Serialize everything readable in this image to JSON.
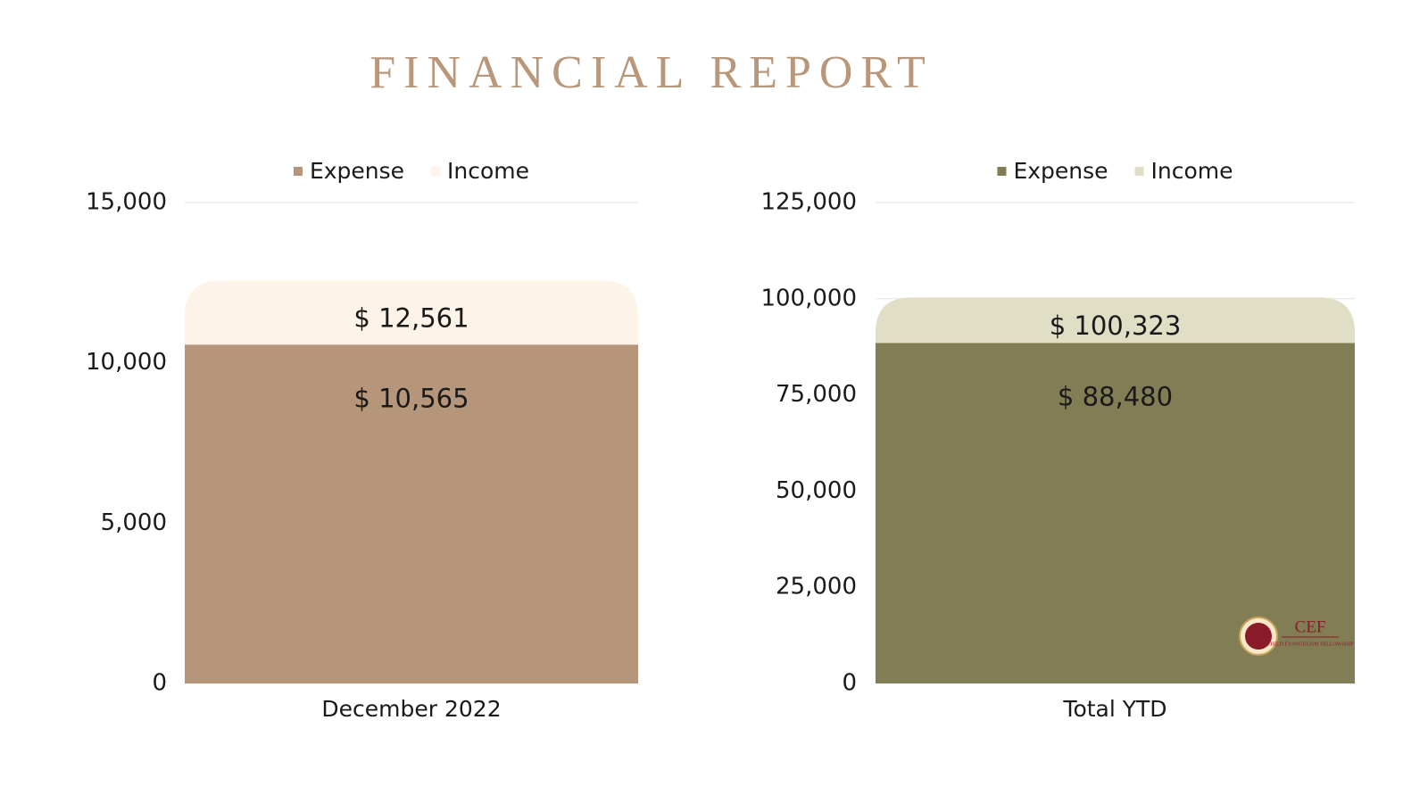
{
  "title": "FINANCIAL REPORT",
  "logo": {
    "name": "CEF",
    "subtitle": "CHILD EVANGELISM FELLOWSHIP"
  },
  "chart_data": [
    {
      "type": "bar",
      "bar_mode": "overlay",
      "categories": [
        "December 2022"
      ],
      "series": [
        {
          "name": "Expense",
          "color": "#b5967a",
          "label_color": "#ffffff",
          "values": [
            10565
          ],
          "value_labels": [
            "$ 10,565"
          ]
        },
        {
          "name": "Income",
          "color": "#fdf3e8",
          "label_color": "#1a1a1a",
          "values": [
            12561
          ],
          "value_labels": [
            "$ 12,561"
          ]
        }
      ],
      "ylim": [
        0,
        15000
      ],
      "yticks": [
        0,
        {
          "value": 5000,
          "label": "5,000"
        },
        {
          "value": 10000,
          "label": "10,000"
        },
        {
          "value": 15000,
          "label": "15,000"
        }
      ],
      "grid": true,
      "legend": "top"
    },
    {
      "type": "bar",
      "bar_mode": "overlay",
      "categories": [
        "Total YTD"
      ],
      "series": [
        {
          "name": "Expense",
          "color": "#817e55",
          "label_color": "#ffffff",
          "values": [
            88480
          ],
          "value_labels": [
            "$ 88,480"
          ]
        },
        {
          "name": "Income",
          "color": "#e1dec6",
          "label_color": "#1a1a1a",
          "values": [
            100323
          ],
          "value_labels": [
            "$ 100,323"
          ]
        }
      ],
      "ylim": [
        0,
        125000
      ],
      "yticks": [
        0,
        {
          "value": 25000,
          "label": "25,000"
        },
        {
          "value": 50000,
          "label": "50,000"
        },
        {
          "value": 75000,
          "label": "75,000"
        },
        {
          "value": 100000,
          "label": "100,000"
        },
        {
          "value": 125000,
          "label": "125,000"
        }
      ],
      "grid": true,
      "legend": "top"
    }
  ]
}
